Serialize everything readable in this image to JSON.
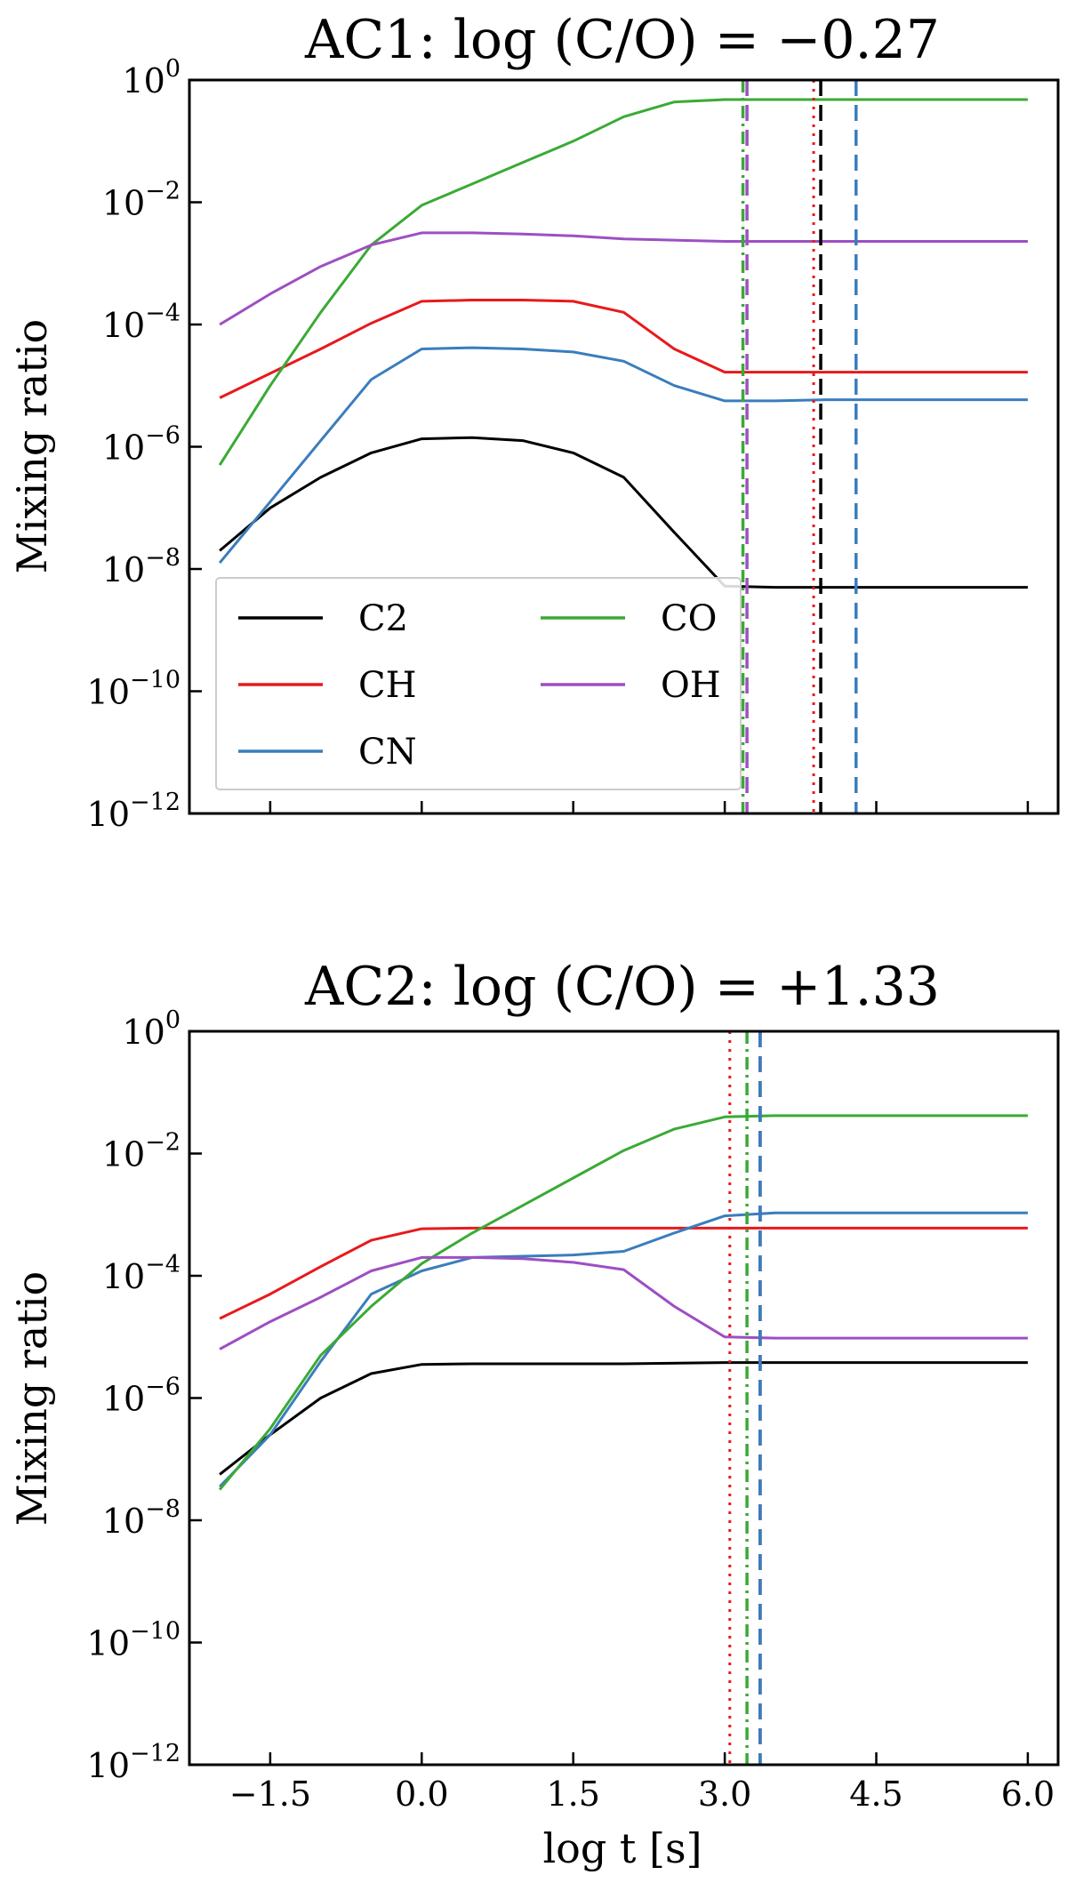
{
  "chart_data": [
    {
      "type": "line",
      "title": "AC1: log (C/O) = −0.27",
      "ylabel": "Mixing ratio",
      "xlabel": "",
      "xlim": [
        -2.3,
        6.3
      ],
      "ylim_log10": [
        -12,
        0
      ],
      "xticks": [
        -1.5,
        0.0,
        1.5,
        3.0,
        4.5,
        6.0
      ],
      "xtick_labels_visible": false,
      "yticks_exp": [
        "0",
        "−2",
        "−4",
        "−6",
        "−8",
        "−10",
        "−12"
      ],
      "legend": {
        "placement": "bottom-left",
        "columns": 2
      },
      "series": [
        {
          "name": "C2",
          "color": "#000000",
          "x": [
            -2.0,
            -1.5,
            -1.0,
            -0.5,
            0.0,
            0.5,
            1.0,
            1.5,
            2.0,
            2.5,
            3.0,
            3.5,
            4.0,
            5.0,
            6.0
          ],
          "y_log10": [
            -7.7,
            -7.0,
            -6.5,
            -6.1,
            -5.87,
            -5.85,
            -5.9,
            -6.1,
            -6.5,
            -7.4,
            -8.28,
            -8.3,
            -8.3,
            -8.3,
            -8.3
          ]
        },
        {
          "name": "CH",
          "color": "#e8191c",
          "x": [
            -2.0,
            -1.5,
            -1.0,
            -0.5,
            0.0,
            0.5,
            1.0,
            1.5,
            2.0,
            2.5,
            3.0,
            3.5,
            4.0,
            5.0,
            6.0
          ],
          "y_log10": [
            -5.2,
            -4.8,
            -4.4,
            -3.98,
            -3.62,
            -3.6,
            -3.6,
            -3.62,
            -3.8,
            -4.4,
            -4.78,
            -4.78,
            -4.78,
            -4.78,
            -4.78
          ]
        },
        {
          "name": "CN",
          "color": "#3a7dbd",
          "x": [
            -2.0,
            -1.5,
            -1.0,
            -0.5,
            0.0,
            0.5,
            1.0,
            1.5,
            2.0,
            2.5,
            3.0,
            3.5,
            4.0,
            5.0,
            6.0
          ],
          "y_log10": [
            -7.9,
            -6.9,
            -5.9,
            -4.9,
            -4.4,
            -4.38,
            -4.4,
            -4.45,
            -4.6,
            -5.0,
            -5.25,
            -5.25,
            -5.23,
            -5.23,
            -5.23
          ]
        },
        {
          "name": "CO",
          "color": "#3aaa35",
          "x": [
            -2.0,
            -1.5,
            -1.0,
            -0.5,
            0.0,
            0.5,
            1.0,
            1.5,
            2.0,
            2.5,
            3.0,
            3.5,
            4.0,
            5.0,
            6.0
          ],
          "y_log10": [
            -6.3,
            -5.0,
            -3.8,
            -2.7,
            -2.05,
            -1.7,
            -1.35,
            -1.0,
            -0.6,
            -0.36,
            -0.32,
            -0.32,
            -0.32,
            -0.32,
            -0.32
          ]
        },
        {
          "name": "OH",
          "color": "#9d4fc2",
          "x": [
            -2.0,
            -1.5,
            -1.0,
            -0.5,
            0.0,
            0.5,
            1.0,
            1.5,
            2.0,
            2.5,
            3.0,
            3.5,
            4.0,
            5.0,
            6.0
          ],
          "y_log10": [
            -4.0,
            -3.5,
            -3.05,
            -2.7,
            -2.5,
            -2.5,
            -2.52,
            -2.55,
            -2.6,
            -2.62,
            -2.64,
            -2.64,
            -2.64,
            -2.64,
            -2.64
          ]
        }
      ],
      "vlines": [
        {
          "species": "C2",
          "x": 3.95,
          "color": "#000000",
          "style": "dashed"
        },
        {
          "species": "CH",
          "x": 3.88,
          "color": "#e8191c",
          "style": "dotted"
        },
        {
          "species": "CN",
          "x": 4.3,
          "color": "#3a7dbd",
          "style": "dashed"
        },
        {
          "species": "CO",
          "x": 3.18,
          "color": "#3aaa35",
          "style": "dashdot"
        },
        {
          "species": "OH",
          "x": 3.22,
          "color": "#9d4fc2",
          "style": "dashed"
        }
      ]
    },
    {
      "type": "line",
      "title": "AC2: log (C/O) = +1.33",
      "ylabel": "Mixing ratio",
      "xlabel": "log t [s]",
      "xlim": [
        -2.3,
        6.3
      ],
      "ylim_log10": [
        -12,
        0
      ],
      "xticks": [
        -1.5,
        0.0,
        1.5,
        3.0,
        4.5,
        6.0
      ],
      "xtick_labels": [
        "−1.5",
        "0.0",
        "1.5",
        "3.0",
        "4.5",
        "6.0"
      ],
      "xtick_labels_visible": true,
      "yticks_exp": [
        "0",
        "−2",
        "−4",
        "−6",
        "−8",
        "−10",
        "−12"
      ],
      "series": [
        {
          "name": "C2",
          "color": "#000000",
          "x": [
            -2.0,
            -1.5,
            -1.0,
            -0.5,
            0.0,
            0.5,
            1.0,
            2.0,
            3.0,
            4.0,
            5.0,
            6.0
          ],
          "y_log10": [
            -7.25,
            -6.6,
            -6.0,
            -5.6,
            -5.45,
            -5.44,
            -5.44,
            -5.44,
            -5.42,
            -5.42,
            -5.42,
            -5.42
          ]
        },
        {
          "name": "CH",
          "color": "#e8191c",
          "x": [
            -2.0,
            -1.5,
            -1.0,
            -0.5,
            0.0,
            0.5,
            1.0,
            2.0,
            3.0,
            4.0,
            5.0,
            6.0
          ],
          "y_log10": [
            -4.7,
            -4.3,
            -3.85,
            -3.42,
            -3.23,
            -3.22,
            -3.22,
            -3.22,
            -3.22,
            -3.22,
            -3.22,
            -3.22
          ]
        },
        {
          "name": "CN",
          "color": "#3a7dbd",
          "x": [
            -2.0,
            -1.5,
            -1.0,
            -0.5,
            0.0,
            0.5,
            1.0,
            1.5,
            2.0,
            2.5,
            3.0,
            3.5,
            4.0,
            5.0,
            6.0
          ],
          "y_log10": [
            -7.45,
            -6.6,
            -5.4,
            -4.3,
            -3.92,
            -3.7,
            -3.68,
            -3.66,
            -3.6,
            -3.3,
            -3.02,
            -2.97,
            -2.97,
            -2.97,
            -2.97
          ]
        },
        {
          "name": "CO",
          "color": "#3aaa35",
          "x": [
            -2.0,
            -1.5,
            -1.0,
            -0.5,
            0.0,
            0.5,
            1.0,
            1.5,
            2.0,
            2.5,
            3.0,
            3.5,
            4.0,
            5.0,
            6.0
          ],
          "y_log10": [
            -7.5,
            -6.5,
            -5.3,
            -4.5,
            -3.8,
            -3.3,
            -2.85,
            -2.4,
            -1.95,
            -1.6,
            -1.4,
            -1.38,
            -1.38,
            -1.38,
            -1.38
          ]
        },
        {
          "name": "OH",
          "color": "#9d4fc2",
          "x": [
            -2.0,
            -1.5,
            -1.0,
            -0.5,
            0.0,
            0.5,
            1.0,
            1.5,
            2.0,
            2.5,
            3.0,
            3.5,
            4.0,
            5.0,
            6.0
          ],
          "y_log10": [
            -5.2,
            -4.75,
            -4.35,
            -3.92,
            -3.7,
            -3.7,
            -3.72,
            -3.78,
            -3.9,
            -4.5,
            -5.0,
            -5.02,
            -5.02,
            -5.02,
            -5.02
          ]
        }
      ],
      "vlines": [
        {
          "species": "CH",
          "x": 3.05,
          "color": "#e8191c",
          "style": "dotted"
        },
        {
          "species": "CO",
          "x": 3.22,
          "color": "#3aaa35",
          "style": "dashdot"
        },
        {
          "species": "C2",
          "x": 3.35,
          "color": "#000000",
          "style": "dashed"
        },
        {
          "species": "OH",
          "x": 3.35,
          "color": "#9d4fc2",
          "style": "dashed"
        },
        {
          "species": "CN",
          "x": 3.35,
          "color": "#3a7dbd",
          "style": "dashed"
        }
      ]
    }
  ]
}
